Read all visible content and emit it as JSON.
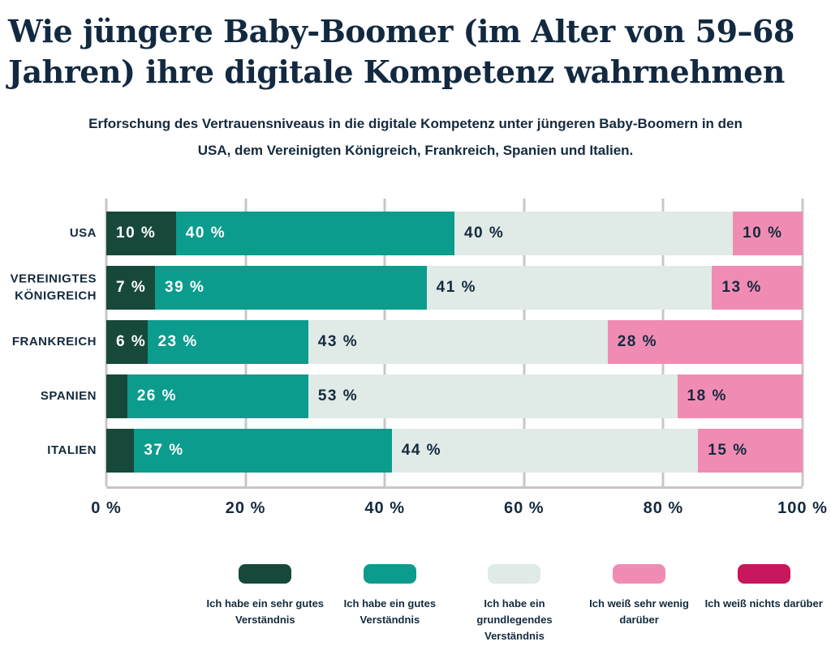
{
  "title": "Wie jüngere Baby-Boomer (im Alter von 59–68 Jahren) ihre digitale Kompetenz wahrnehmen",
  "subtitle": "Erforschung des Vertrauensniveaus in die digitale Kompetenz unter jüngeren Baby-Boomern in den USA, dem Vereinigten Königreich, Frankreich, Spanien und Italien.",
  "colors": {
    "text_navy": "#142A3E",
    "title_navy": "#122940",
    "gridline": "#CBC4C8",
    "background": "#FFFFFF"
  },
  "chart_data": {
    "type": "bar",
    "stacked": true,
    "orientation": "horizontal",
    "grid": true,
    "legend_position": "bottom",
    "xlim": [
      0,
      100
    ],
    "x_ticks": [
      "0 %",
      "20 %",
      "40 %",
      "60 %",
      "80 %",
      "100 %"
    ],
    "categories": [
      "USA",
      "VEREINIGTES KÖNIGREICH",
      "FRANKREICH",
      "SPANIEN",
      "ITALIEN"
    ],
    "series": [
      {
        "name": "Ich habe ein sehr gutes Verständnis",
        "color": "#17493B",
        "label_color": "#FFFFFF",
        "values": [
          10,
          7,
          6,
          3,
          4
        ],
        "labels": [
          "10 %",
          "7 %",
          "6 %",
          "",
          ""
        ]
      },
      {
        "name": "Ich habe ein gutes Verständnis",
        "color": "#0B9C8D",
        "label_color": "#FFFFFF",
        "values": [
          40,
          39,
          23,
          26,
          37
        ],
        "labels": [
          "40 %",
          "39 %",
          "23 %",
          "26 %",
          "37 %"
        ]
      },
      {
        "name": "Ich habe ein grundlegendes Verständnis",
        "color": "#E0EAE7",
        "label_color": "#142A3E",
        "values": [
          40,
          41,
          43,
          53,
          44
        ],
        "labels": [
          "40 %",
          "41 %",
          "43 %",
          "53 %",
          "44 %"
        ]
      },
      {
        "name": "Ich weiß sehr wenig darüber",
        "color": "#F08CB3",
        "label_color": "#142A3E",
        "values": [
          10,
          13,
          28,
          18,
          15
        ],
        "labels": [
          "10 %",
          "13 %",
          "28 %",
          "18 %",
          "15 %"
        ]
      },
      {
        "name": "Ich weiß nichts darüber",
        "color": "#C8175D",
        "label_color": "#FFFFFF",
        "values": [
          0,
          0,
          0,
          0,
          0
        ],
        "labels": [
          "",
          "",
          "",
          "",
          ""
        ]
      }
    ]
  }
}
